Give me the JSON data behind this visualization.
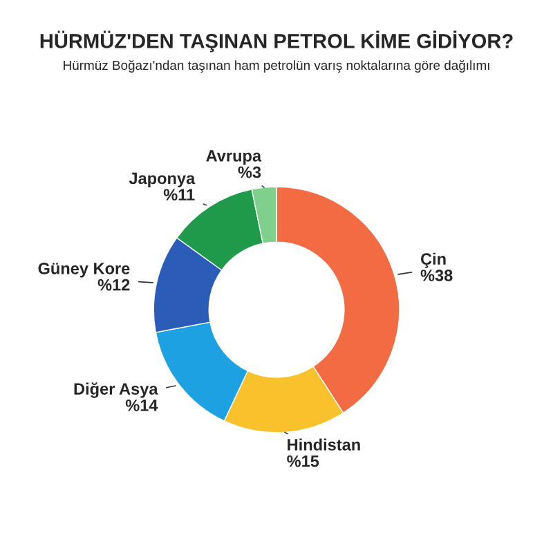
{
  "chart_data": {
    "type": "donut",
    "title": "HÜRMÜZ'DEN TAŞINAN PETROL KİME GİDİYOR?",
    "subtitle": "Hürmüz Boğazı'ndan taşınan ham petrolün varış noktalarına göre dağılımı",
    "categories": [
      "Çin",
      "Hindistan",
      "Diğer Asya",
      "Güney Kore",
      "Japonya",
      "Avrupa"
    ],
    "values": [
      38,
      15,
      14,
      12,
      11,
      3
    ],
    "value_labels": [
      "%38",
      "%15",
      "%14",
      "%12",
      "%11",
      "%3"
    ],
    "colors": [
      "#f26b43",
      "#f9c12b",
      "#1ea1e3",
      "#2b5db8",
      "#1f9a4b",
      "#7fd08c"
    ]
  }
}
